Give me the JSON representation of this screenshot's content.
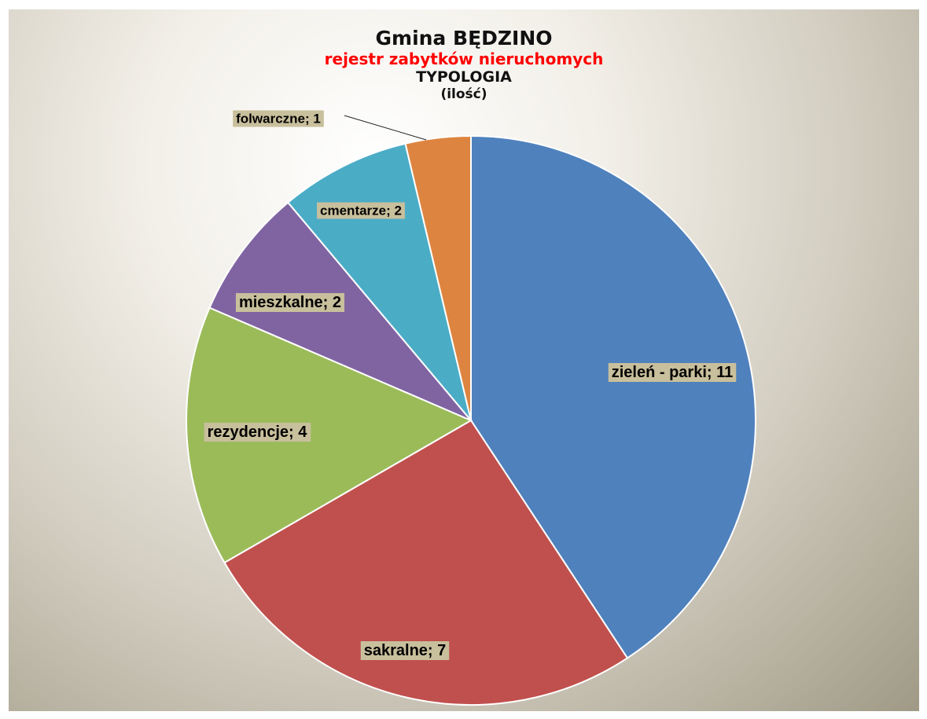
{
  "chart_data": {
    "type": "pie",
    "title": "Gmina BĘDZINO",
    "subtitle": "rejestr zabytków nieruchomych",
    "subtitle2": "TYPOLOGIA",
    "unit_label": "(ilość)",
    "slices": [
      {
        "category": "zieleń - parki",
        "value": 11,
        "label": "zieleń - parki; 11",
        "color": "#4f81bd"
      },
      {
        "category": "sakralne",
        "value": 7,
        "label": "sakralne; 7",
        "color": "#c0504d"
      },
      {
        "category": "rezydencje",
        "value": 4,
        "label": "rezydencje; 4",
        "color": "#9bbb59"
      },
      {
        "category": "mieszkalne",
        "value": 2,
        "label": "mieszkalne; 2",
        "color": "#8064a2"
      },
      {
        "category": "cmentarze",
        "value": 2,
        "label": "cmentarze; 2",
        "color": "#4bacc6"
      },
      {
        "category": "folwarczne",
        "value": 1,
        "label": "folwarczne; 1",
        "color": "#dd8540"
      }
    ],
    "label_background": "#c8bf9c",
    "legend": "none"
  }
}
